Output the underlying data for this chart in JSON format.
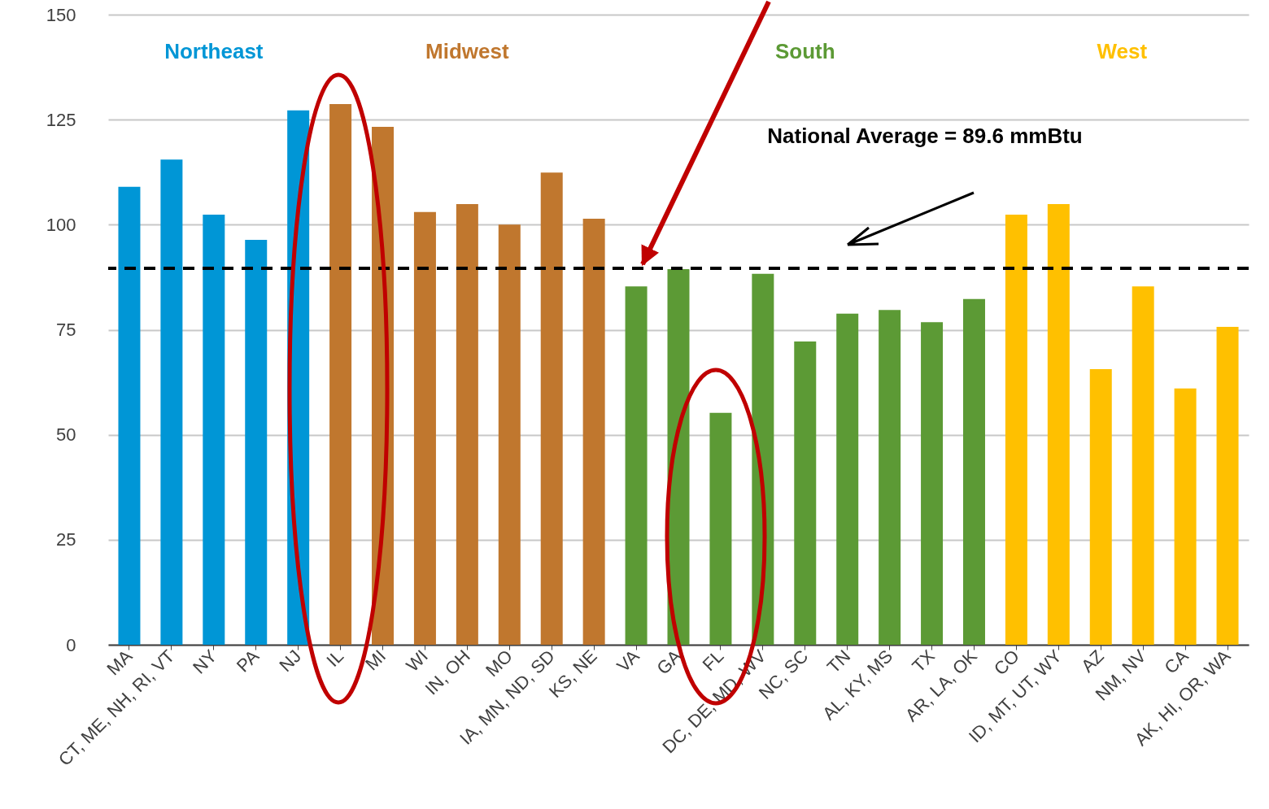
{
  "chart_data": {
    "type": "bar",
    "categories": [
      "MA",
      "CT, ME, NH, RI, VT",
      "NY",
      "PA",
      "NJ",
      "IL",
      "MI",
      "WI",
      "IN, OH",
      "MO",
      "IA, MN, ND, SD",
      "KS, NE",
      "VA",
      "GA",
      "FL",
      "DC, DE, MD, WV",
      "NC, SC",
      "TN",
      "AL, KY, MS",
      "TX",
      "AR, LA, OK",
      "CO",
      "ID, MT, UT, WY",
      "AZ",
      "NM, NV",
      "CA",
      "AK, HI, OR, WA"
    ],
    "values": [
      109,
      115.5,
      102.4,
      96.4,
      127.2,
      128.7,
      123.3,
      103,
      104.9,
      100,
      112.4,
      101.4,
      85.3,
      89.4,
      55.2,
      88.3,
      72.2,
      78.8,
      79.7,
      76.8,
      82.3,
      102.4,
      104.9,
      65.6,
      85.3,
      61,
      75.7
    ],
    "colors": [
      "#0096d6",
      "#0096d6",
      "#0096d6",
      "#0096d6",
      "#0096d6",
      "#c0772e",
      "#c0772e",
      "#c0772e",
      "#c0772e",
      "#c0772e",
      "#c0772e",
      "#c0772e",
      "#5c9a35",
      "#5c9a35",
      "#5c9a35",
      "#5c9a35",
      "#5c9a35",
      "#5c9a35",
      "#5c9a35",
      "#5c9a35",
      "#5c9a35",
      "#ffc000",
      "#ffc000",
      "#ffc000",
      "#ffc000",
      "#ffc000",
      "#ffc000"
    ],
    "ylim": [
      0,
      150
    ],
    "yticks": [
      0,
      25,
      50,
      75,
      100,
      125,
      150
    ],
    "grid": "y",
    "ref_lines": [
      {
        "axis": "y",
        "value": 89.6,
        "label": "National Average = 89.6 mmBtu",
        "color": "#000000",
        "line_style": "dashed"
      }
    ],
    "annotations": [
      "Northeast",
      "Midwest",
      "South",
      "West"
    ]
  }
}
